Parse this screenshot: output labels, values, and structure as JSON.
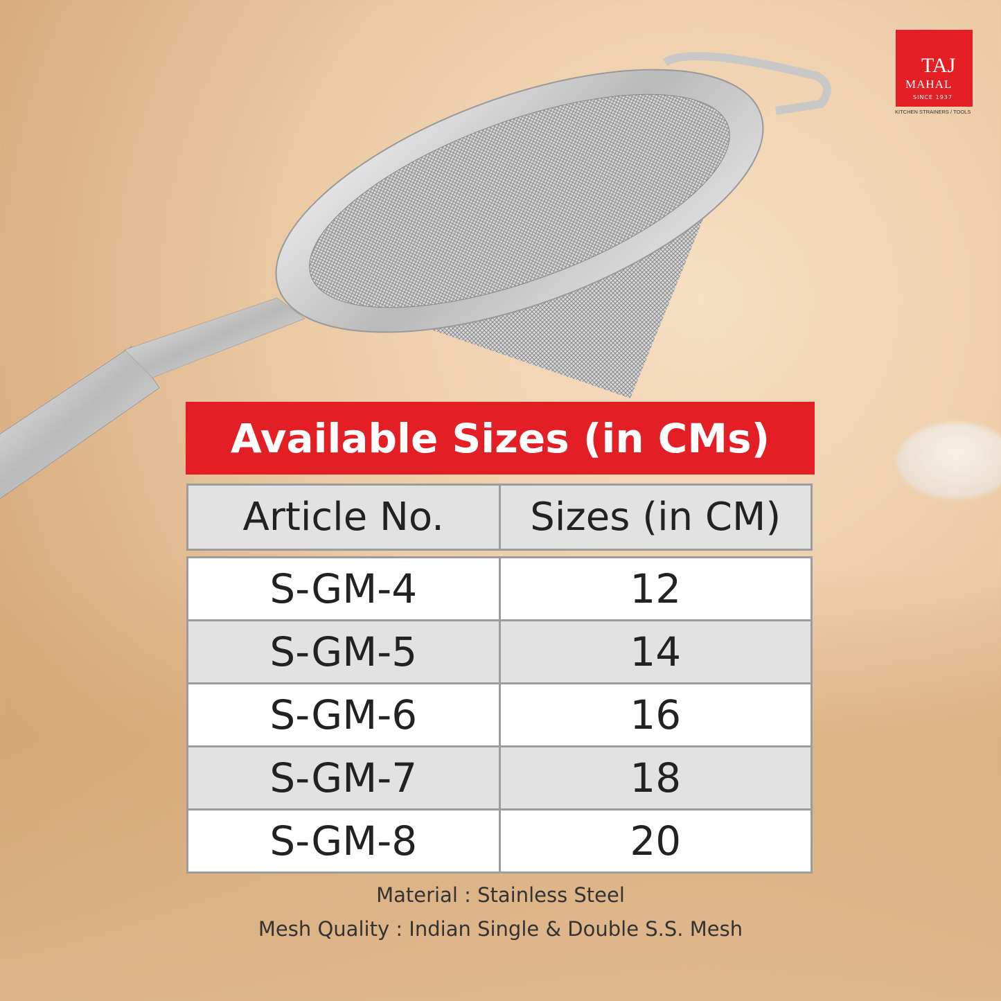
{
  "brand": {
    "name_line1": "TAJ",
    "name_line2": "MAHAL",
    "since": "SINCE 1937",
    "tagline": "KITCHEN STRAINERS / TOOLS",
    "color": "#e31e24"
  },
  "title": "Available Sizes (in CMs)",
  "table": {
    "headers": [
      "Article No.",
      "Sizes (in CM)"
    ],
    "rows": [
      [
        "S-GM-4",
        "12"
      ],
      [
        "S-GM-5",
        "14"
      ],
      [
        "S-GM-6",
        "16"
      ],
      [
        "S-GM-7",
        "18"
      ],
      [
        "S-GM-8",
        "20"
      ]
    ]
  },
  "material": "Material : Stainless Steel",
  "mesh": "Mesh Quality : Indian Single & Double S.S. Mesh"
}
